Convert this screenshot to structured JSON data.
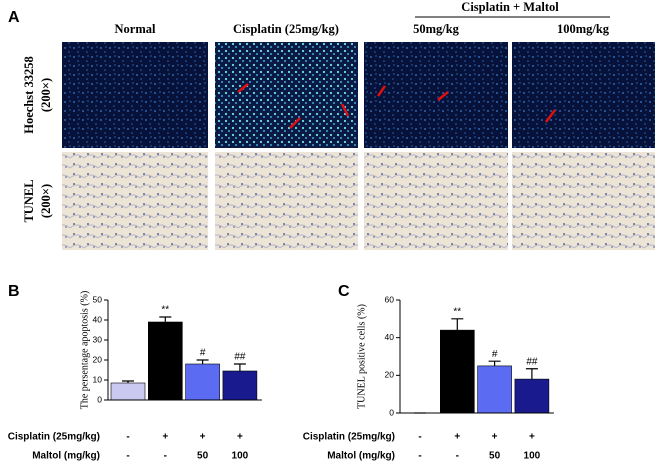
{
  "figure_a": {
    "label": "A",
    "columns": [
      "Normal",
      "Cisplatin (25mg/kg)",
      "50mg/kg",
      "100mg/kg"
    ],
    "group_header": "Cisplatin + Maltol",
    "rows": [
      {
        "name": "Hoechst 33258",
        "magnification": "(200×)"
      },
      {
        "name": "TUNEL",
        "magnification": "(200×)"
      }
    ]
  },
  "chart_data": [
    {
      "type": "bar",
      "label": "B",
      "ylabel": "The persentage apoptosis (%)",
      "ylim": [
        0,
        50
      ],
      "yticks": [
        0,
        10,
        20,
        30,
        40,
        50
      ],
      "values": [
        8.5,
        39,
        18,
        14.5
      ],
      "errors": [
        1,
        2.5,
        2,
        3.5
      ],
      "colors": [
        "#c9c9f2",
        "#000000",
        "#5b6cf3",
        "#1a1a8f"
      ],
      "annotations": [
        null,
        "**",
        "#",
        "##"
      ],
      "annotation_colors": [
        null,
        "#000000",
        "#000000",
        "#000000"
      ],
      "rows": [
        {
          "name": "Cisplatin (25mg/kg)",
          "values": [
            "-",
            "+",
            "+",
            "+"
          ]
        },
        {
          "name": "Maltol (mg/kg)",
          "values": [
            "-",
            "-",
            "50",
            "100"
          ]
        }
      ]
    },
    {
      "type": "bar",
      "label": "C",
      "ylabel": "TUNEL positive cells (%)",
      "ylim": [
        0,
        60
      ],
      "yticks": [
        0,
        20,
        40,
        60
      ],
      "values": [
        0,
        44,
        25,
        18
      ],
      "errors": [
        0,
        6,
        2.5,
        5.5
      ],
      "colors": [
        "#c9c9f2",
        "#000000",
        "#5b6cf3",
        "#1a1a8f"
      ],
      "annotations": [
        null,
        "**",
        "#",
        "##"
      ],
      "annotation_colors": [
        null,
        "#000000",
        "#000000",
        "#aaaaaa"
      ],
      "rows": [
        {
          "name": "Cisplatin (25mg/kg)",
          "values": [
            "-",
            "+",
            "+",
            "+"
          ]
        },
        {
          "name": "Maltol (mg/kg)",
          "values": [
            "-",
            "-",
            "50",
            "100"
          ]
        }
      ]
    }
  ]
}
